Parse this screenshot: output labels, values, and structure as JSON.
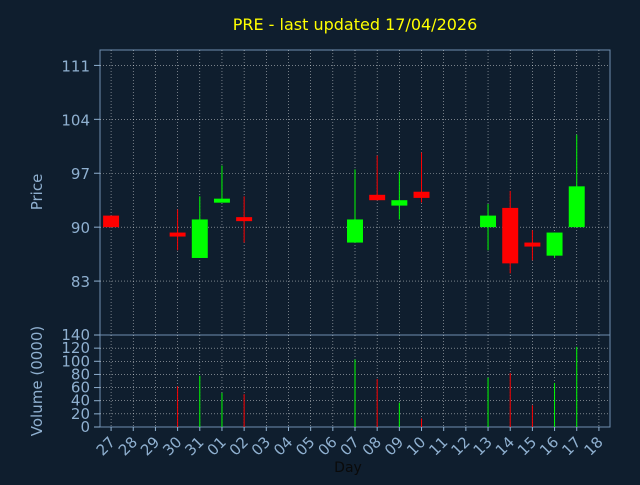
{
  "chart_data": [
    {
      "type": "candlestick",
      "title": "PRE - last updated 17/04/2026",
      "ylabel": "Price",
      "ylim": [
        76,
        113
      ],
      "yticks": [
        83,
        90,
        97,
        104,
        111
      ],
      "grid": true,
      "categories": [
        "27",
        "28",
        "29",
        "30",
        "31",
        "01",
        "02",
        "03",
        "04",
        "05",
        "06",
        "07",
        "08",
        "09",
        "10",
        "11",
        "12",
        "13",
        "14",
        "15",
        "16",
        "17",
        "18"
      ],
      "candles": [
        {
          "day": "27",
          "open": 91.5,
          "close": 90.0,
          "high": 91.5,
          "low": 90.0,
          "direction": "down"
        },
        {
          "day": "30",
          "open": 89.3,
          "close": 88.8,
          "high": 92.3,
          "low": 87.0,
          "direction": "down"
        },
        {
          "day": "31",
          "open": 86.0,
          "close": 91.0,
          "high": 94.0,
          "low": 86.0,
          "direction": "up"
        },
        {
          "day": "01",
          "open": 93.2,
          "close": 93.7,
          "high": 98.0,
          "low": 93.2,
          "direction": "up"
        },
        {
          "day": "02",
          "open": 91.3,
          "close": 90.8,
          "high": 94.0,
          "low": 88.0,
          "direction": "down"
        },
        {
          "day": "07",
          "open": 88.0,
          "close": 91.0,
          "high": 97.5,
          "low": 88.0,
          "direction": "up"
        },
        {
          "day": "08",
          "open": 94.2,
          "close": 93.5,
          "high": 99.3,
          "low": 93.5,
          "direction": "down"
        },
        {
          "day": "09",
          "open": 92.8,
          "close": 93.5,
          "high": 97.2,
          "low": 91.0,
          "direction": "up"
        },
        {
          "day": "10",
          "open": 94.6,
          "close": 93.8,
          "high": 99.7,
          "low": 93.2,
          "direction": "down"
        },
        {
          "day": "13",
          "open": 90.0,
          "close": 91.5,
          "high": 93.0,
          "low": 87.0,
          "direction": "up"
        },
        {
          "day": "14",
          "open": 92.5,
          "close": 85.3,
          "high": 94.7,
          "low": 84.0,
          "direction": "down"
        },
        {
          "day": "15",
          "open": 88.0,
          "close": 87.5,
          "high": 89.6,
          "low": 85.7,
          "direction": "down"
        },
        {
          "day": "16",
          "open": 86.3,
          "close": 89.3,
          "high": 89.3,
          "low": 86.0,
          "direction": "up"
        },
        {
          "day": "17",
          "open": 90.0,
          "close": 95.3,
          "high": 102.0,
          "low": 90.0,
          "direction": "up"
        }
      ]
    },
    {
      "type": "bar",
      "ylabel": "Volume (0000)",
      "xlabel": "Day",
      "ylim": [
        0,
        140
      ],
      "yticks": [
        0,
        20,
        40,
        60,
        80,
        100,
        120,
        140
      ],
      "grid": true,
      "categories": [
        "27",
        "28",
        "29",
        "30",
        "31",
        "01",
        "02",
        "03",
        "04",
        "05",
        "06",
        "07",
        "08",
        "09",
        "10",
        "11",
        "12",
        "13",
        "14",
        "15",
        "16",
        "17",
        "18"
      ],
      "bars": [
        {
          "day": "30",
          "value": 62,
          "direction": "down"
        },
        {
          "day": "31",
          "value": 78,
          "direction": "up"
        },
        {
          "day": "01",
          "value": 52,
          "direction": "up"
        },
        {
          "day": "02",
          "value": 50,
          "direction": "down"
        },
        {
          "day": "07",
          "value": 103,
          "direction": "up"
        },
        {
          "day": "08",
          "value": 73,
          "direction": "down"
        },
        {
          "day": "09",
          "value": 37,
          "direction": "up"
        },
        {
          "day": "10",
          "value": 13,
          "direction": "down"
        },
        {
          "day": "13",
          "value": 75,
          "direction": "up"
        },
        {
          "day": "14",
          "value": 82,
          "direction": "down"
        },
        {
          "day": "15",
          "value": 33,
          "direction": "down"
        },
        {
          "day": "16",
          "value": 67,
          "direction": "up"
        },
        {
          "day": "17",
          "value": 122,
          "direction": "up"
        }
      ]
    }
  ],
  "colors": {
    "background": "#0f1e2e",
    "title": "#ffff00",
    "axis_text": "#8fb0d0",
    "up": "#00ff00",
    "down": "#ff0000",
    "grid": "#ffffff"
  }
}
